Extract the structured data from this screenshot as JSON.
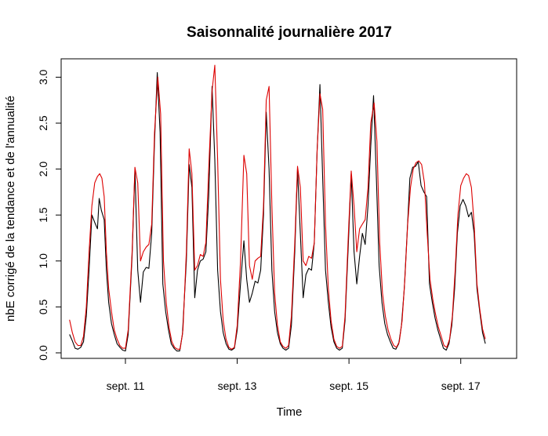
{
  "chart_data": {
    "type": "line",
    "title": "Saisonnalité journalière 2017",
    "xlabel": "Time",
    "ylabel": "nbE corrigé de la tendance et de l'annualité",
    "x_unit": "days (September 2017)",
    "xlim": [
      9.85,
      18.0
    ],
    "ylim": [
      -0.06,
      3.2
    ],
    "x_ticks": [
      11,
      13,
      15,
      17
    ],
    "x_tick_labels": [
      "sept. 11",
      "sept. 13",
      "sept. 15",
      "sept. 17"
    ],
    "y_ticks": [
      0.0,
      0.5,
      1.0,
      1.5,
      2.0,
      2.5,
      3.0
    ],
    "y_tick_labels": [
      "0.0",
      "0.5",
      "1.0",
      "1.5",
      "2.0",
      "2.5",
      "3.0"
    ],
    "grid": false,
    "legend": "none",
    "series": [
      {
        "color": "#000000",
        "points": [
          [
            10.0,
            0.2
          ],
          [
            10.05,
            0.13
          ],
          [
            10.1,
            0.05
          ],
          [
            10.15,
            0.04
          ],
          [
            10.2,
            0.06
          ],
          [
            10.25,
            0.12
          ],
          [
            10.3,
            0.4
          ],
          [
            10.35,
            0.9
          ],
          [
            10.4,
            1.5
          ],
          [
            10.45,
            1.42
          ],
          [
            10.5,
            1.35
          ],
          [
            10.53,
            1.68
          ],
          [
            10.57,
            1.55
          ],
          [
            10.62,
            1.45
          ],
          [
            10.66,
            0.9
          ],
          [
            10.7,
            0.55
          ],
          [
            10.75,
            0.32
          ],
          [
            10.8,
            0.2
          ],
          [
            10.85,
            0.1
          ],
          [
            10.9,
            0.06
          ],
          [
            10.95,
            0.03
          ],
          [
            11.0,
            0.02
          ],
          [
            11.05,
            0.2
          ],
          [
            11.12,
            1.05
          ],
          [
            11.17,
            2.0
          ],
          [
            11.22,
            0.9
          ],
          [
            11.27,
            0.55
          ],
          [
            11.32,
            0.88
          ],
          [
            11.37,
            0.93
          ],
          [
            11.42,
            0.92
          ],
          [
            11.47,
            1.3
          ],
          [
            11.52,
            2.3
          ],
          [
            11.57,
            3.05
          ],
          [
            11.62,
            2.4
          ],
          [
            11.67,
            0.75
          ],
          [
            11.72,
            0.45
          ],
          [
            11.77,
            0.25
          ],
          [
            11.82,
            0.1
          ],
          [
            11.87,
            0.05
          ],
          [
            11.92,
            0.02
          ],
          [
            11.97,
            0.02
          ],
          [
            12.02,
            0.2
          ],
          [
            12.09,
            1.0
          ],
          [
            12.14,
            2.05
          ],
          [
            12.19,
            1.8
          ],
          [
            12.24,
            0.6
          ],
          [
            12.29,
            0.9
          ],
          [
            12.34,
            1.0
          ],
          [
            12.39,
            1.02
          ],
          [
            12.44,
            1.1
          ],
          [
            12.49,
            1.7
          ],
          [
            12.55,
            2.9
          ],
          [
            12.6,
            2.1
          ],
          [
            12.65,
            0.9
          ],
          [
            12.7,
            0.45
          ],
          [
            12.75,
            0.22
          ],
          [
            12.8,
            0.1
          ],
          [
            12.85,
            0.04
          ],
          [
            12.9,
            0.03
          ],
          [
            12.95,
            0.05
          ],
          [
            13.0,
            0.25
          ],
          [
            13.06,
            0.75
          ],
          [
            13.12,
            1.22
          ],
          [
            13.17,
            0.8
          ],
          [
            13.22,
            0.55
          ],
          [
            13.27,
            0.65
          ],
          [
            13.32,
            0.78
          ],
          [
            13.37,
            0.76
          ],
          [
            13.42,
            0.9
          ],
          [
            13.47,
            1.5
          ],
          [
            13.52,
            2.62
          ],
          [
            13.57,
            2.0
          ],
          [
            13.62,
            0.9
          ],
          [
            13.67,
            0.45
          ],
          [
            13.72,
            0.22
          ],
          [
            13.77,
            0.1
          ],
          [
            13.82,
            0.05
          ],
          [
            13.87,
            0.03
          ],
          [
            13.92,
            0.05
          ],
          [
            13.97,
            0.3
          ],
          [
            14.03,
            1.1
          ],
          [
            14.08,
            2.0
          ],
          [
            14.13,
            1.3
          ],
          [
            14.18,
            0.6
          ],
          [
            14.23,
            0.85
          ],
          [
            14.28,
            0.92
          ],
          [
            14.33,
            0.9
          ],
          [
            14.38,
            1.2
          ],
          [
            14.43,
            2.2
          ],
          [
            14.48,
            2.92
          ],
          [
            14.53,
            1.9
          ],
          [
            14.58,
            0.9
          ],
          [
            14.63,
            0.55
          ],
          [
            14.68,
            0.28
          ],
          [
            14.73,
            0.12
          ],
          [
            14.78,
            0.05
          ],
          [
            14.83,
            0.03
          ],
          [
            14.88,
            0.05
          ],
          [
            14.93,
            0.35
          ],
          [
            14.99,
            1.2
          ],
          [
            15.04,
            1.95
          ],
          [
            15.09,
            1.1
          ],
          [
            15.14,
            0.75
          ],
          [
            15.19,
            1.05
          ],
          [
            15.24,
            1.3
          ],
          [
            15.29,
            1.18
          ],
          [
            15.34,
            1.6
          ],
          [
            15.39,
            2.25
          ],
          [
            15.44,
            2.8
          ],
          [
            15.49,
            1.9
          ],
          [
            15.54,
            0.95
          ],
          [
            15.59,
            0.55
          ],
          [
            15.64,
            0.32
          ],
          [
            15.69,
            0.2
          ],
          [
            15.74,
            0.12
          ],
          [
            15.79,
            0.05
          ],
          [
            15.84,
            0.04
          ],
          [
            15.89,
            0.1
          ],
          [
            15.94,
            0.3
          ],
          [
            15.99,
            0.7
          ],
          [
            16.04,
            1.3
          ],
          [
            16.09,
            1.9
          ],
          [
            16.14,
            2.02
          ],
          [
            16.19,
            2.03
          ],
          [
            16.24,
            2.08
          ],
          [
            16.29,
            1.82
          ],
          [
            16.34,
            1.75
          ],
          [
            16.39,
            1.7
          ],
          [
            16.44,
            0.75
          ],
          [
            16.49,
            0.55
          ],
          [
            16.54,
            0.38
          ],
          [
            16.59,
            0.25
          ],
          [
            16.64,
            0.15
          ],
          [
            16.69,
            0.05
          ],
          [
            16.74,
            0.03
          ],
          [
            16.79,
            0.1
          ],
          [
            16.84,
            0.3
          ],
          [
            16.89,
            0.7
          ],
          [
            16.94,
            1.3
          ],
          [
            16.99,
            1.6
          ],
          [
            17.04,
            1.67
          ],
          [
            17.09,
            1.6
          ],
          [
            17.14,
            1.48
          ],
          [
            17.19,
            1.53
          ],
          [
            17.24,
            1.3
          ],
          [
            17.29,
            0.7
          ],
          [
            17.34,
            0.45
          ],
          [
            17.39,
            0.22
          ],
          [
            17.44,
            0.1
          ]
        ]
      },
      {
        "color": "#dd0000",
        "points": [
          [
            10.0,
            0.36
          ],
          [
            10.05,
            0.22
          ],
          [
            10.1,
            0.12
          ],
          [
            10.15,
            0.08
          ],
          [
            10.2,
            0.08
          ],
          [
            10.25,
            0.18
          ],
          [
            10.3,
            0.5
          ],
          [
            10.35,
            1.1
          ],
          [
            10.4,
            1.6
          ],
          [
            10.45,
            1.85
          ],
          [
            10.5,
            1.92
          ],
          [
            10.54,
            1.95
          ],
          [
            10.58,
            1.9
          ],
          [
            10.62,
            1.7
          ],
          [
            10.66,
            1.1
          ],
          [
            10.7,
            0.7
          ],
          [
            10.75,
            0.45
          ],
          [
            10.8,
            0.25
          ],
          [
            10.85,
            0.15
          ],
          [
            10.9,
            0.08
          ],
          [
            10.95,
            0.05
          ],
          [
            11.0,
            0.05
          ],
          [
            11.05,
            0.25
          ],
          [
            11.12,
            1.1
          ],
          [
            11.17,
            2.02
          ],
          [
            11.22,
            1.85
          ],
          [
            11.27,
            1.0
          ],
          [
            11.32,
            1.1
          ],
          [
            11.37,
            1.15
          ],
          [
            11.42,
            1.18
          ],
          [
            11.47,
            1.4
          ],
          [
            11.52,
            2.4
          ],
          [
            11.58,
            3.0
          ],
          [
            11.63,
            2.6
          ],
          [
            11.68,
            1.0
          ],
          [
            11.73,
            0.55
          ],
          [
            11.78,
            0.28
          ],
          [
            11.83,
            0.12
          ],
          [
            11.88,
            0.06
          ],
          [
            11.93,
            0.04
          ],
          [
            11.98,
            0.04
          ],
          [
            12.03,
            0.25
          ],
          [
            12.09,
            1.1
          ],
          [
            12.14,
            2.22
          ],
          [
            12.19,
            1.95
          ],
          [
            12.24,
            0.9
          ],
          [
            12.29,
            0.95
          ],
          [
            12.34,
            1.07
          ],
          [
            12.39,
            1.05
          ],
          [
            12.44,
            1.2
          ],
          [
            12.49,
            2.0
          ],
          [
            12.55,
            2.85
          ],
          [
            12.6,
            3.13
          ],
          [
            12.65,
            2.1
          ],
          [
            12.7,
            0.8
          ],
          [
            12.75,
            0.35
          ],
          [
            12.8,
            0.15
          ],
          [
            12.85,
            0.06
          ],
          [
            12.9,
            0.04
          ],
          [
            12.95,
            0.06
          ],
          [
            13.0,
            0.3
          ],
          [
            13.06,
            1.0
          ],
          [
            13.12,
            2.15
          ],
          [
            13.17,
            1.95
          ],
          [
            13.22,
            0.95
          ],
          [
            13.27,
            0.8
          ],
          [
            13.32,
            1.0
          ],
          [
            13.37,
            1.03
          ],
          [
            13.42,
            1.05
          ],
          [
            13.47,
            1.6
          ],
          [
            13.52,
            2.75
          ],
          [
            13.57,
            2.9
          ],
          [
            13.62,
            1.6
          ],
          [
            13.67,
            0.65
          ],
          [
            13.72,
            0.3
          ],
          [
            13.77,
            0.12
          ],
          [
            13.82,
            0.07
          ],
          [
            13.87,
            0.05
          ],
          [
            13.92,
            0.08
          ],
          [
            13.97,
            0.4
          ],
          [
            14.03,
            1.2
          ],
          [
            14.08,
            2.03
          ],
          [
            14.13,
            1.8
          ],
          [
            14.18,
            1.0
          ],
          [
            14.23,
            0.95
          ],
          [
            14.28,
            1.05
          ],
          [
            14.33,
            1.03
          ],
          [
            14.38,
            1.2
          ],
          [
            14.43,
            2.2
          ],
          [
            14.48,
            2.82
          ],
          [
            14.53,
            2.65
          ],
          [
            14.58,
            1.4
          ],
          [
            14.63,
            0.7
          ],
          [
            14.68,
            0.35
          ],
          [
            14.73,
            0.15
          ],
          [
            14.78,
            0.07
          ],
          [
            14.83,
            0.05
          ],
          [
            14.88,
            0.07
          ],
          [
            14.93,
            0.4
          ],
          [
            14.99,
            1.3
          ],
          [
            15.04,
            1.98
          ],
          [
            15.09,
            1.6
          ],
          [
            15.14,
            1.1
          ],
          [
            15.19,
            1.35
          ],
          [
            15.24,
            1.4
          ],
          [
            15.29,
            1.45
          ],
          [
            15.34,
            1.8
          ],
          [
            15.39,
            2.5
          ],
          [
            15.45,
            2.72
          ],
          [
            15.5,
            2.3
          ],
          [
            15.55,
            1.2
          ],
          [
            15.6,
            0.65
          ],
          [
            15.65,
            0.4
          ],
          [
            15.7,
            0.25
          ],
          [
            15.75,
            0.15
          ],
          [
            15.8,
            0.08
          ],
          [
            15.85,
            0.06
          ],
          [
            15.9,
            0.12
          ],
          [
            15.95,
            0.35
          ],
          [
            16.0,
            0.8
          ],
          [
            16.05,
            1.4
          ],
          [
            16.1,
            1.8
          ],
          [
            16.15,
            2.0
          ],
          [
            16.2,
            2.07
          ],
          [
            16.25,
            2.09
          ],
          [
            16.3,
            2.05
          ],
          [
            16.35,
            1.85
          ],
          [
            16.4,
            1.3
          ],
          [
            16.45,
            0.8
          ],
          [
            16.5,
            0.58
          ],
          [
            16.55,
            0.42
          ],
          [
            16.6,
            0.28
          ],
          [
            16.65,
            0.18
          ],
          [
            16.7,
            0.08
          ],
          [
            16.75,
            0.06
          ],
          [
            16.8,
            0.15
          ],
          [
            16.85,
            0.4
          ],
          [
            16.9,
            0.9
          ],
          [
            16.95,
            1.5
          ],
          [
            17.0,
            1.82
          ],
          [
            17.05,
            1.9
          ],
          [
            17.1,
            1.95
          ],
          [
            17.14,
            1.93
          ],
          [
            17.19,
            1.8
          ],
          [
            17.24,
            1.4
          ],
          [
            17.29,
            0.75
          ],
          [
            17.34,
            0.48
          ],
          [
            17.39,
            0.26
          ],
          [
            17.44,
            0.15
          ]
        ]
      }
    ]
  }
}
